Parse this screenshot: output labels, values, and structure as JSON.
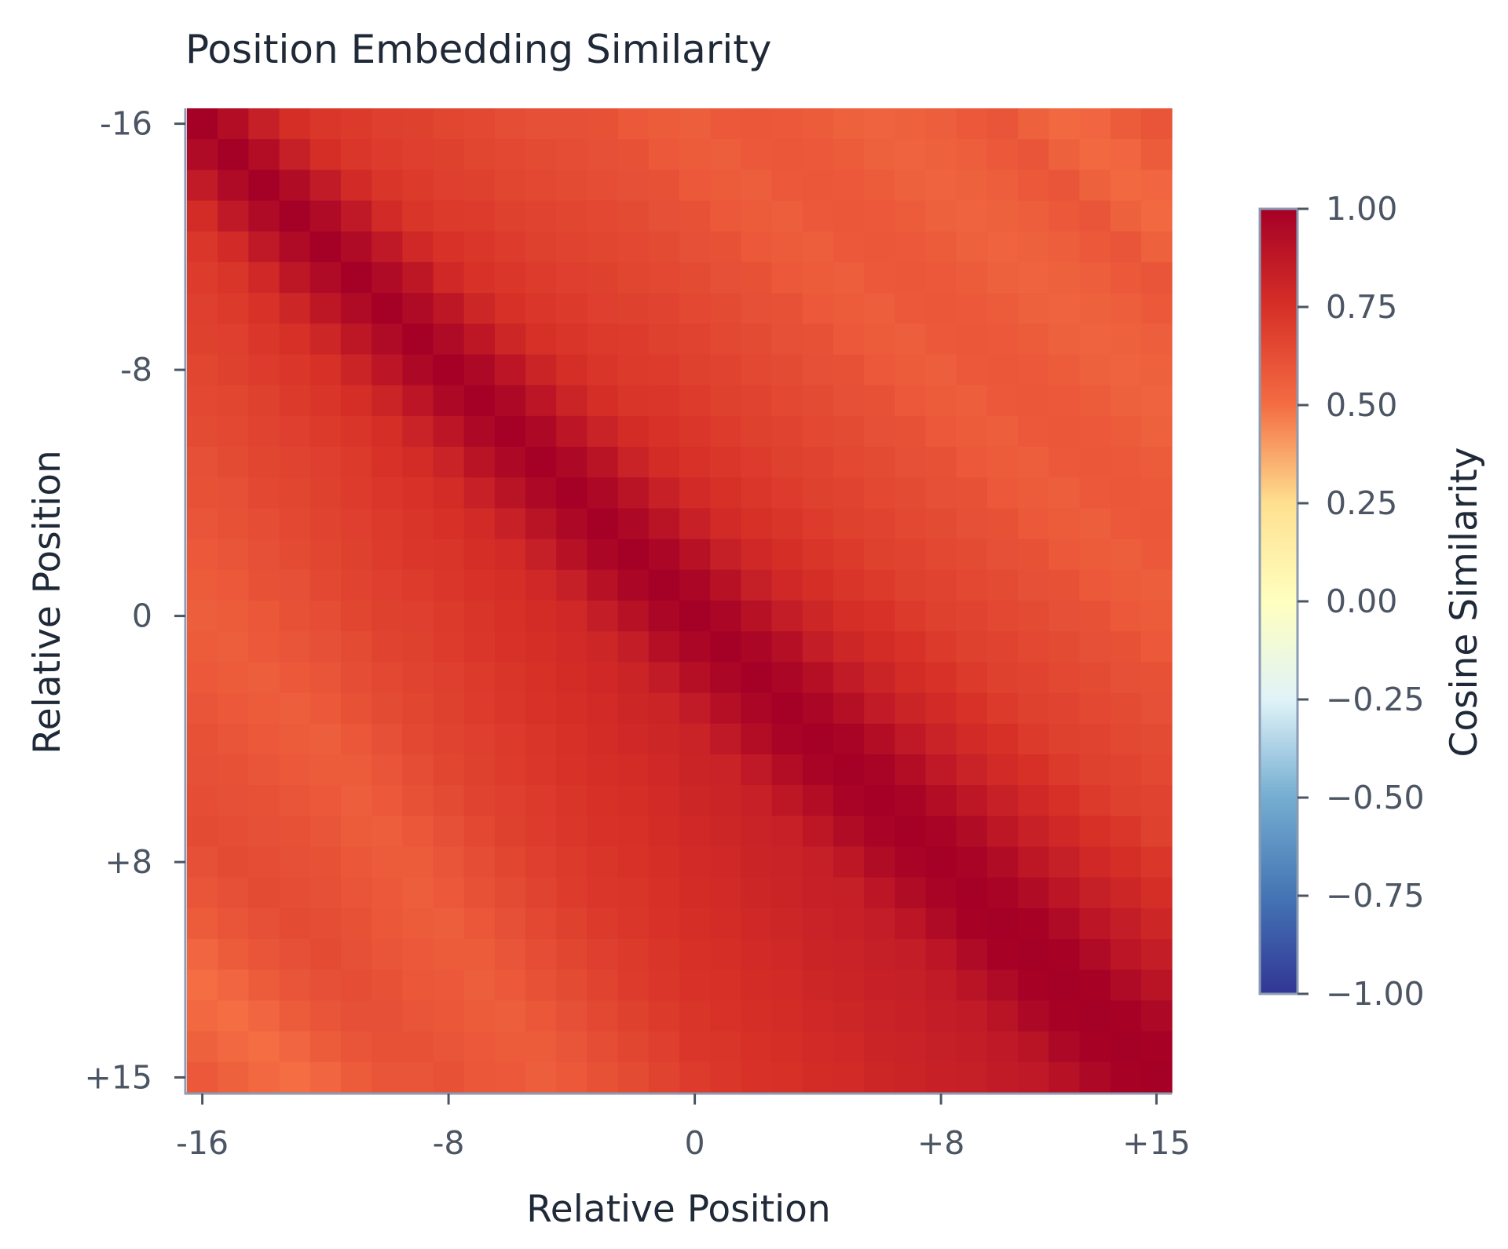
{
  "chart_data": {
    "type": "heatmap",
    "title": "Position Embedding Similarity",
    "xlabel": "Relative Position",
    "ylabel": "Relative Position",
    "x_range": [
      -16,
      15
    ],
    "y_range": [
      -16,
      15
    ],
    "x_ticks": [
      {
        "value": -16,
        "label": "-16"
      },
      {
        "value": -8,
        "label": "-8"
      },
      {
        "value": 0,
        "label": "0"
      },
      {
        "value": 8,
        "label": "+8"
      },
      {
        "value": 15,
        "label": "+15"
      }
    ],
    "y_ticks": [
      {
        "value": -16,
        "label": "-16"
      },
      {
        "value": -8,
        "label": "-8"
      },
      {
        "value": 0,
        "label": "0"
      },
      {
        "value": 8,
        "label": "+8"
      },
      {
        "value": 15,
        "label": "+15"
      }
    ],
    "colorbar": {
      "label": "Cosine Similarity",
      "range": [
        -1.0,
        1.0
      ],
      "ticks": [
        {
          "value": 1.0,
          "label": "1.00"
        },
        {
          "value": 0.75,
          "label": "0.75"
        },
        {
          "value": 0.5,
          "label": "0.50"
        },
        {
          "value": 0.25,
          "label": "0.25"
        },
        {
          "value": 0.0,
          "label": "0.00"
        },
        {
          "value": -0.25,
          "label": "−0.25"
        },
        {
          "value": -0.5,
          "label": "−0.50"
        },
        {
          "value": -0.75,
          "label": "−0.75"
        },
        {
          "value": -1.0,
          "label": "−1.00"
        }
      ],
      "colormap_stops": [
        {
          "value": -1.0,
          "color": "#313695"
        },
        {
          "value": -0.75,
          "color": "#4575b4"
        },
        {
          "value": -0.5,
          "color": "#74add1"
        },
        {
          "value": -0.25,
          "color": "#e0f3f8"
        },
        {
          "value": 0.0,
          "color": "#ffffbf"
        },
        {
          "value": 0.25,
          "color": "#fee090"
        },
        {
          "value": 0.5,
          "color": "#f46d43"
        },
        {
          "value": 0.75,
          "color": "#d73027"
        },
        {
          "value": 1.0,
          "color": "#a50026"
        }
      ]
    },
    "grid": false,
    "size": 32,
    "values": [
      [
        1.0,
        0.93,
        0.84,
        0.76,
        0.72,
        0.71,
        0.69,
        0.68,
        0.66,
        0.65,
        0.63,
        0.62,
        0.62,
        0.61,
        0.58,
        0.57,
        0.56,
        0.58,
        0.59,
        0.58,
        0.57,
        0.55,
        0.54,
        0.55,
        0.56,
        0.58,
        0.6,
        0.55,
        0.52,
        0.53,
        0.57,
        0.6
      ],
      [
        0.95,
        1.0,
        0.93,
        0.84,
        0.76,
        0.72,
        0.7,
        0.69,
        0.68,
        0.66,
        0.65,
        0.64,
        0.63,
        0.62,
        0.61,
        0.58,
        0.57,
        0.56,
        0.58,
        0.59,
        0.58,
        0.57,
        0.55,
        0.54,
        0.55,
        0.56,
        0.58,
        0.6,
        0.55,
        0.52,
        0.53,
        0.57
      ],
      [
        0.86,
        0.95,
        1.0,
        0.94,
        0.86,
        0.78,
        0.73,
        0.71,
        0.69,
        0.68,
        0.66,
        0.65,
        0.64,
        0.63,
        0.62,
        0.61,
        0.58,
        0.57,
        0.56,
        0.58,
        0.59,
        0.58,
        0.57,
        0.55,
        0.54,
        0.55,
        0.56,
        0.58,
        0.6,
        0.55,
        0.52,
        0.53
      ],
      [
        0.77,
        0.87,
        0.95,
        1.0,
        0.95,
        0.87,
        0.78,
        0.73,
        0.71,
        0.7,
        0.68,
        0.67,
        0.66,
        0.65,
        0.64,
        0.62,
        0.61,
        0.58,
        0.57,
        0.56,
        0.58,
        0.59,
        0.58,
        0.57,
        0.55,
        0.54,
        0.55,
        0.56,
        0.58,
        0.6,
        0.55,
        0.52
      ],
      [
        0.72,
        0.78,
        0.87,
        0.95,
        1.0,
        0.95,
        0.87,
        0.79,
        0.74,
        0.72,
        0.7,
        0.68,
        0.67,
        0.66,
        0.65,
        0.64,
        0.62,
        0.61,
        0.58,
        0.57,
        0.56,
        0.58,
        0.59,
        0.58,
        0.57,
        0.55,
        0.54,
        0.55,
        0.56,
        0.58,
        0.6,
        0.55
      ],
      [
        0.7,
        0.73,
        0.79,
        0.88,
        0.95,
        1.0,
        0.95,
        0.88,
        0.79,
        0.74,
        0.72,
        0.7,
        0.69,
        0.68,
        0.66,
        0.65,
        0.64,
        0.62,
        0.61,
        0.58,
        0.57,
        0.56,
        0.58,
        0.59,
        0.58,
        0.57,
        0.55,
        0.54,
        0.55,
        0.56,
        0.58,
        0.6
      ],
      [
        0.69,
        0.71,
        0.74,
        0.8,
        0.88,
        0.95,
        1.0,
        0.95,
        0.88,
        0.8,
        0.75,
        0.72,
        0.71,
        0.69,
        0.68,
        0.67,
        0.65,
        0.64,
        0.62,
        0.61,
        0.58,
        0.57,
        0.56,
        0.58,
        0.59,
        0.58,
        0.57,
        0.55,
        0.54,
        0.55,
        0.56,
        0.58
      ],
      [
        0.68,
        0.69,
        0.72,
        0.75,
        0.8,
        0.88,
        0.95,
        1.0,
        0.95,
        0.88,
        0.8,
        0.75,
        0.73,
        0.71,
        0.7,
        0.68,
        0.67,
        0.65,
        0.64,
        0.62,
        0.61,
        0.58,
        0.57,
        0.56,
        0.58,
        0.59,
        0.58,
        0.57,
        0.55,
        0.54,
        0.55,
        0.56
      ],
      [
        0.66,
        0.68,
        0.7,
        0.72,
        0.75,
        0.81,
        0.89,
        0.96,
        1.0,
        0.96,
        0.89,
        0.81,
        0.76,
        0.73,
        0.71,
        0.7,
        0.68,
        0.67,
        0.65,
        0.64,
        0.62,
        0.61,
        0.58,
        0.57,
        0.56,
        0.58,
        0.59,
        0.58,
        0.57,
        0.55,
        0.54,
        0.55
      ],
      [
        0.65,
        0.66,
        0.68,
        0.71,
        0.73,
        0.76,
        0.81,
        0.89,
        0.96,
        1.0,
        0.96,
        0.89,
        0.81,
        0.76,
        0.73,
        0.72,
        0.7,
        0.68,
        0.67,
        0.65,
        0.64,
        0.62,
        0.61,
        0.58,
        0.57,
        0.56,
        0.58,
        0.59,
        0.58,
        0.57,
        0.55,
        0.54
      ],
      [
        0.64,
        0.65,
        0.67,
        0.69,
        0.71,
        0.73,
        0.76,
        0.82,
        0.89,
        0.96,
        1.0,
        0.96,
        0.89,
        0.82,
        0.77,
        0.74,
        0.72,
        0.7,
        0.68,
        0.67,
        0.65,
        0.64,
        0.62,
        0.61,
        0.58,
        0.57,
        0.56,
        0.58,
        0.59,
        0.58,
        0.57,
        0.55
      ],
      [
        0.62,
        0.64,
        0.66,
        0.67,
        0.69,
        0.71,
        0.74,
        0.77,
        0.82,
        0.9,
        0.96,
        1.0,
        0.96,
        0.9,
        0.82,
        0.77,
        0.74,
        0.72,
        0.7,
        0.68,
        0.67,
        0.65,
        0.64,
        0.62,
        0.61,
        0.58,
        0.57,
        0.56,
        0.58,
        0.59,
        0.58,
        0.57
      ],
      [
        0.61,
        0.62,
        0.65,
        0.66,
        0.68,
        0.7,
        0.72,
        0.74,
        0.77,
        0.83,
        0.9,
        0.96,
        1.0,
        0.96,
        0.9,
        0.83,
        0.78,
        0.75,
        0.72,
        0.7,
        0.68,
        0.67,
        0.65,
        0.64,
        0.62,
        0.61,
        0.58,
        0.57,
        0.56,
        0.58,
        0.59,
        0.58
      ],
      [
        0.6,
        0.61,
        0.63,
        0.65,
        0.67,
        0.69,
        0.71,
        0.73,
        0.75,
        0.78,
        0.83,
        0.9,
        0.96,
        1.0,
        0.96,
        0.9,
        0.83,
        0.78,
        0.75,
        0.73,
        0.7,
        0.68,
        0.67,
        0.65,
        0.64,
        0.62,
        0.61,
        0.58,
        0.57,
        0.56,
        0.58,
        0.59
      ],
      [
        0.58,
        0.6,
        0.62,
        0.64,
        0.66,
        0.68,
        0.7,
        0.72,
        0.73,
        0.76,
        0.78,
        0.84,
        0.91,
        0.97,
        1.0,
        0.97,
        0.91,
        0.84,
        0.79,
        0.76,
        0.73,
        0.71,
        0.68,
        0.67,
        0.65,
        0.64,
        0.62,
        0.61,
        0.58,
        0.57,
        0.56,
        0.58
      ],
      [
        0.57,
        0.58,
        0.61,
        0.62,
        0.65,
        0.67,
        0.69,
        0.7,
        0.72,
        0.74,
        0.76,
        0.79,
        0.84,
        0.91,
        0.97,
        1.0,
        0.97,
        0.91,
        0.84,
        0.79,
        0.76,
        0.73,
        0.71,
        0.68,
        0.67,
        0.65,
        0.64,
        0.62,
        0.61,
        0.58,
        0.57,
        0.56
      ],
      [
        0.56,
        0.57,
        0.59,
        0.61,
        0.63,
        0.66,
        0.68,
        0.69,
        0.71,
        0.73,
        0.75,
        0.77,
        0.79,
        0.85,
        0.91,
        0.97,
        1.0,
        0.97,
        0.91,
        0.85,
        0.8,
        0.76,
        0.74,
        0.71,
        0.68,
        0.67,
        0.65,
        0.64,
        0.62,
        0.61,
        0.58,
        0.57
      ],
      [
        0.57,
        0.56,
        0.58,
        0.6,
        0.62,
        0.64,
        0.67,
        0.68,
        0.7,
        0.72,
        0.74,
        0.76,
        0.78,
        0.8,
        0.85,
        0.92,
        0.97,
        1.0,
        0.97,
        0.92,
        0.85,
        0.8,
        0.77,
        0.74,
        0.71,
        0.68,
        0.67,
        0.65,
        0.64,
        0.62,
        0.61,
        0.58
      ],
      [
        0.58,
        0.57,
        0.56,
        0.58,
        0.6,
        0.63,
        0.65,
        0.67,
        0.69,
        0.71,
        0.73,
        0.75,
        0.77,
        0.79,
        0.81,
        0.86,
        0.92,
        0.97,
        1.0,
        0.97,
        0.92,
        0.86,
        0.81,
        0.77,
        0.74,
        0.71,
        0.68,
        0.67,
        0.65,
        0.64,
        0.62,
        0.61
      ],
      [
        0.6,
        0.58,
        0.57,
        0.56,
        0.58,
        0.61,
        0.64,
        0.66,
        0.68,
        0.7,
        0.72,
        0.74,
        0.76,
        0.78,
        0.8,
        0.81,
        0.86,
        0.92,
        0.97,
        1.0,
        0.97,
        0.92,
        0.86,
        0.81,
        0.78,
        0.74,
        0.71,
        0.68,
        0.67,
        0.65,
        0.64,
        0.62
      ],
      [
        0.61,
        0.6,
        0.58,
        0.57,
        0.56,
        0.59,
        0.62,
        0.65,
        0.67,
        0.69,
        0.71,
        0.73,
        0.75,
        0.77,
        0.79,
        0.8,
        0.82,
        0.87,
        0.93,
        0.98,
        1.0,
        0.98,
        0.93,
        0.87,
        0.82,
        0.78,
        0.75,
        0.71,
        0.68,
        0.67,
        0.65,
        0.64
      ],
      [
        0.62,
        0.61,
        0.6,
        0.58,
        0.57,
        0.57,
        0.6,
        0.63,
        0.66,
        0.68,
        0.7,
        0.72,
        0.74,
        0.76,
        0.77,
        0.79,
        0.81,
        0.82,
        0.87,
        0.93,
        0.98,
        1.0,
        0.98,
        0.93,
        0.87,
        0.82,
        0.78,
        0.75,
        0.71,
        0.68,
        0.67,
        0.65
      ],
      [
        0.63,
        0.62,
        0.61,
        0.6,
        0.58,
        0.56,
        0.58,
        0.61,
        0.64,
        0.67,
        0.69,
        0.71,
        0.73,
        0.75,
        0.76,
        0.78,
        0.8,
        0.81,
        0.83,
        0.88,
        0.93,
        0.98,
        1.0,
        0.98,
        0.93,
        0.88,
        0.83,
        0.79,
        0.75,
        0.71,
        0.68,
        0.67
      ],
      [
        0.64,
        0.63,
        0.62,
        0.61,
        0.6,
        0.57,
        0.56,
        0.59,
        0.62,
        0.65,
        0.68,
        0.7,
        0.72,
        0.74,
        0.75,
        0.77,
        0.79,
        0.8,
        0.82,
        0.83,
        0.88,
        0.94,
        0.98,
        1.0,
        0.98,
        0.94,
        0.88,
        0.83,
        0.79,
        0.75,
        0.72,
        0.68
      ],
      [
        0.62,
        0.64,
        0.63,
        0.62,
        0.61,
        0.59,
        0.57,
        0.57,
        0.6,
        0.63,
        0.66,
        0.69,
        0.71,
        0.73,
        0.74,
        0.76,
        0.78,
        0.79,
        0.81,
        0.82,
        0.84,
        0.88,
        0.94,
        0.98,
        1.0,
        0.98,
        0.94,
        0.88,
        0.84,
        0.79,
        0.76,
        0.72
      ],
      [
        0.6,
        0.62,
        0.64,
        0.63,
        0.62,
        0.6,
        0.58,
        0.56,
        0.58,
        0.61,
        0.64,
        0.67,
        0.7,
        0.72,
        0.73,
        0.75,
        0.77,
        0.78,
        0.8,
        0.81,
        0.83,
        0.84,
        0.89,
        0.94,
        0.98,
        1.0,
        0.98,
        0.94,
        0.89,
        0.84,
        0.8,
        0.76
      ],
      [
        0.57,
        0.6,
        0.62,
        0.64,
        0.63,
        0.61,
        0.59,
        0.57,
        0.56,
        0.59,
        0.62,
        0.65,
        0.68,
        0.71,
        0.72,
        0.74,
        0.76,
        0.77,
        0.79,
        0.8,
        0.82,
        0.83,
        0.85,
        0.89,
        0.95,
        0.99,
        1.0,
        0.99,
        0.95,
        0.89,
        0.85,
        0.8
      ],
      [
        0.53,
        0.57,
        0.6,
        0.62,
        0.64,
        0.62,
        0.6,
        0.58,
        0.57,
        0.57,
        0.6,
        0.63,
        0.66,
        0.69,
        0.71,
        0.73,
        0.75,
        0.76,
        0.78,
        0.79,
        0.81,
        0.82,
        0.84,
        0.85,
        0.89,
        0.95,
        0.99,
        1.0,
        0.99,
        0.95,
        0.89,
        0.85
      ],
      [
        0.5,
        0.53,
        0.57,
        0.6,
        0.62,
        0.63,
        0.61,
        0.59,
        0.58,
        0.56,
        0.58,
        0.61,
        0.64,
        0.67,
        0.7,
        0.72,
        0.74,
        0.75,
        0.77,
        0.78,
        0.8,
        0.81,
        0.83,
        0.84,
        0.86,
        0.9,
        0.95,
        0.99,
        1.0,
        0.99,
        0.95,
        0.9
      ],
      [
        0.52,
        0.5,
        0.53,
        0.57,
        0.6,
        0.62,
        0.62,
        0.6,
        0.59,
        0.57,
        0.56,
        0.59,
        0.62,
        0.65,
        0.68,
        0.71,
        0.73,
        0.74,
        0.76,
        0.77,
        0.79,
        0.8,
        0.82,
        0.83,
        0.85,
        0.86,
        0.9,
        0.96,
        0.99,
        1.0,
        0.99,
        0.96
      ],
      [
        0.55,
        0.52,
        0.5,
        0.53,
        0.57,
        0.6,
        0.61,
        0.61,
        0.6,
        0.58,
        0.57,
        0.57,
        0.6,
        0.63,
        0.66,
        0.69,
        0.72,
        0.73,
        0.75,
        0.76,
        0.78,
        0.79,
        0.81,
        0.82,
        0.84,
        0.85,
        0.87,
        0.9,
        0.96,
        0.99,
        1.0,
        0.99
      ],
      [
        0.58,
        0.55,
        0.52,
        0.5,
        0.53,
        0.57,
        0.6,
        0.6,
        0.61,
        0.59,
        0.58,
        0.56,
        0.58,
        0.61,
        0.64,
        0.67,
        0.7,
        0.72,
        0.74,
        0.75,
        0.77,
        0.78,
        0.8,
        0.81,
        0.83,
        0.84,
        0.86,
        0.87,
        0.91,
        0.96,
        0.99,
        1.0
      ]
    ]
  }
}
